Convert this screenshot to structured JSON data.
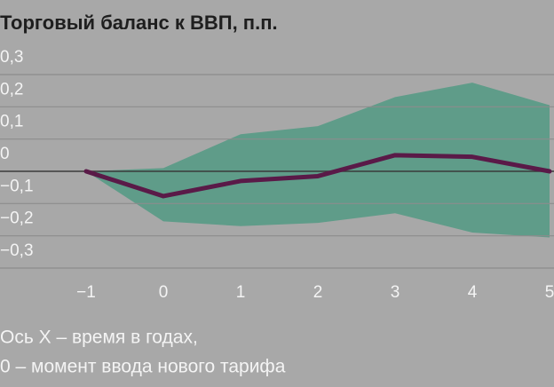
{
  "chart_data": {
    "type": "line",
    "title": "Торговый баланс к ВВП, п.п.",
    "x": [
      -1,
      0,
      1,
      2,
      3,
      4,
      5
    ],
    "values": [
      0,
      -0.077,
      -0.03,
      -0.015,
      0.05,
      0.045,
      0
    ],
    "band_upper": [
      0,
      0.01,
      0.115,
      0.14,
      0.23,
      0.275,
      0.205
    ],
    "band_lower": [
      0,
      -0.155,
      -0.17,
      -0.16,
      -0.13,
      -0.19,
      -0.205
    ],
    "color": "#5a1a48",
    "band_color": "#5f9c89",
    "xlim": [
      -1,
      5
    ],
    "xticks": [
      {
        "value": -1,
        "label": "−1"
      },
      0,
      1,
      2,
      3,
      4,
      5
    ],
    "ylim": [
      -0.3,
      0.3
    ],
    "yticks": [
      {
        "value": 0.3,
        "label": "0,3"
      },
      {
        "value": 0.2,
        "label": "0,2"
      },
      {
        "value": 0.1,
        "label": "0,1"
      },
      0,
      {
        "value": -0.1,
        "label": "−0,1"
      },
      {
        "value": -0.2,
        "label": "−0,2"
      },
      {
        "value": -0.3,
        "label": "−0,3"
      }
    ],
    "grid": true,
    "notes": [
      "Ось X – время в годах,",
      "0 – момент ввода нового тарифа"
    ]
  }
}
